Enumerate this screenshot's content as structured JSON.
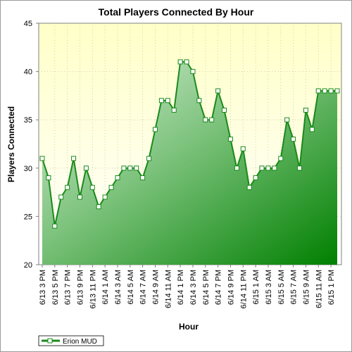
{
  "chart_data": {
    "type": "area",
    "title": "Total Players Connected By Hour",
    "xlabel": "Hour",
    "ylabel": "Players Connected",
    "ylim": [
      20,
      45
    ],
    "yticks": [
      20,
      25,
      30,
      35,
      40,
      45
    ],
    "grid": true,
    "legend_position": "bottom-left",
    "x_tick_labels": [
      "6/13 3 PM",
      "6/13 5 PM",
      "6/13 7 PM",
      "6/13 9 PM",
      "6/13 11 PM",
      "6/14 1 AM",
      "6/14 3 AM",
      "6/14 5 AM",
      "6/14 7 AM",
      "6/14 9 AM",
      "6/14 11 AM",
      "6/14 1 PM",
      "6/14 3 PM",
      "6/14 5 PM",
      "6/14 7 PM",
      "6/14 9 PM",
      "6/14 11 PM",
      "6/15 1 AM",
      "6/15 3 AM",
      "6/15 5 AM",
      "6/15 7 AM",
      "6/15 9 AM",
      "6/15 11 AM",
      "6/15 1 PM"
    ],
    "x": [
      "6/13 3 PM",
      "6/13 4 PM",
      "6/13 5 PM",
      "6/13 6 PM",
      "6/13 7 PM",
      "6/13 8 PM",
      "6/13 9 PM",
      "6/13 10 PM",
      "6/13 11 PM",
      "6/14 12 AM",
      "6/14 1 AM",
      "6/14 2 AM",
      "6/14 3 AM",
      "6/14 4 AM",
      "6/14 5 AM",
      "6/14 6 AM",
      "6/14 7 AM",
      "6/14 8 AM",
      "6/14 9 AM",
      "6/14 10 AM",
      "6/14 11 AM",
      "6/14 12 PM",
      "6/14 1 PM",
      "6/14 2 PM",
      "6/14 3 PM",
      "6/14 4 PM",
      "6/14 5 PM",
      "6/14 6 PM",
      "6/14 7 PM",
      "6/14 8 PM",
      "6/14 9 PM",
      "6/14 10 PM",
      "6/14 11 PM",
      "6/15 12 AM",
      "6/15 1 AM",
      "6/15 2 AM",
      "6/15 3 AM",
      "6/15 4 AM",
      "6/15 5 AM",
      "6/15 6 AM",
      "6/15 7 AM",
      "6/15 8 AM",
      "6/15 9 AM",
      "6/15 10 AM",
      "6/15 11 AM",
      "6/15 12 PM",
      "6/15 1 PM",
      "6/15 2 PM"
    ],
    "series": [
      {
        "name": "Erion MUD",
        "color": "#1a8a1a",
        "values": [
          31,
          29,
          24,
          27,
          28,
          31,
          27,
          30,
          28,
          26,
          27,
          28,
          29,
          30,
          30,
          30,
          29,
          31,
          34,
          37,
          37,
          36,
          41,
          41,
          40,
          37,
          35,
          35,
          38,
          36,
          33,
          30,
          32,
          28,
          29,
          30,
          30,
          30,
          31,
          35,
          33,
          30,
          36,
          34,
          38,
          38,
          38,
          38
        ]
      }
    ]
  }
}
